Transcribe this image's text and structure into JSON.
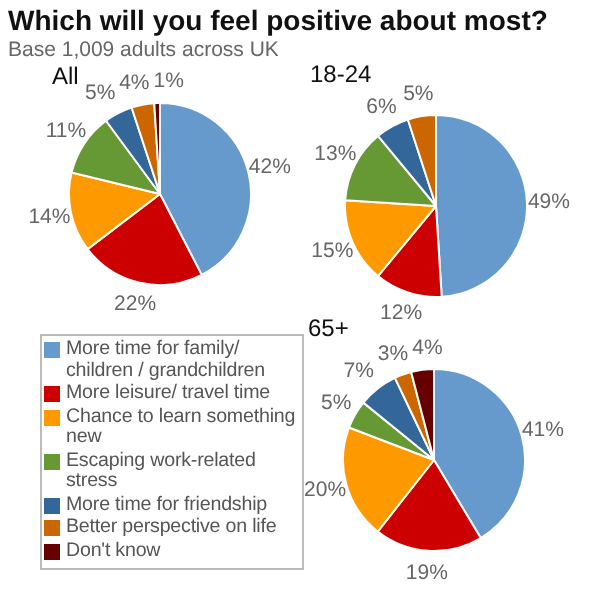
{
  "chart_data": [
    {
      "type": "pie",
      "title": "Which will you feel positive about most?",
      "subtitle": "Base 1,009 adults across UK",
      "annotations": [
        "All"
      ],
      "categories": [
        "More time for family/ children / grandchildren",
        "More leisure/ travel time",
        "Chance to learn something new",
        "Escaping work-related stress",
        "More time for friendship",
        "Better perspective on life",
        "Don't know"
      ],
      "values": [
        42,
        22,
        14,
        11,
        5,
        4,
        1
      ],
      "value_labels": [
        "42%",
        "22%",
        "14%",
        "11%",
        "5%",
        "4%",
        "1%"
      ],
      "colors": [
        "#6699cc",
        "#cc0000",
        "#ff9900",
        "#669933",
        "#336699",
        "#cc6600",
        "#660000"
      ],
      "legend": "bottom"
    },
    {
      "type": "pie",
      "title": "18-24",
      "categories": [
        null,
        null,
        null,
        null,
        null,
        null,
        null
      ],
      "values": [
        49,
        12,
        15,
        13,
        6,
        5,
        0
      ],
      "value_labels": [
        "49%",
        "12%",
        "15%",
        "13%",
        "6%",
        "5%",
        null
      ],
      "colors": [
        "#6699cc",
        "#cc0000",
        "#ff9900",
        "#669933",
        "#336699",
        "#cc6600",
        "#660000"
      ]
    },
    {
      "type": "pie",
      "title": "65+",
      "categories": [
        null,
        null,
        null,
        null,
        null,
        null,
        null
      ],
      "values": [
        41,
        19,
        20,
        5,
        7,
        3,
        4
      ],
      "value_labels": [
        "41%",
        "19%",
        "20%",
        "5%",
        "7%",
        "3%",
        "4%"
      ],
      "colors": [
        "#6699cc",
        "#cc0000",
        "#ff9900",
        "#669933",
        "#336699",
        "#cc6600",
        "#660000"
      ]
    }
  ]
}
